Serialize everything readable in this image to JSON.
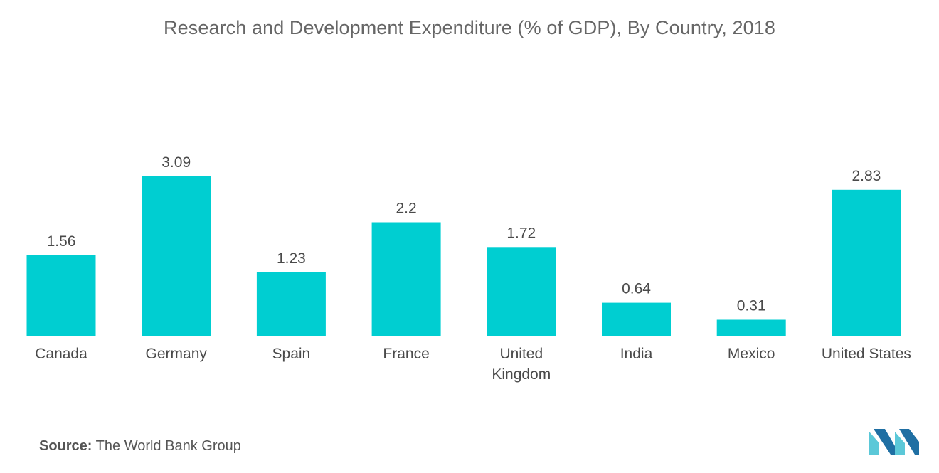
{
  "chart_data": {
    "type": "bar",
    "title": "Research and Development Expenditure (% of GDP), By Country, 2018",
    "categories": [
      [
        "Canada"
      ],
      [
        "Germany"
      ],
      [
        "Spain"
      ],
      [
        "France"
      ],
      [
        "United",
        "Kingdom"
      ],
      [
        "India"
      ],
      [
        "Mexico"
      ],
      [
        "United States"
      ]
    ],
    "values": [
      1.56,
      3.09,
      1.23,
      2.2,
      1.72,
      0.64,
      0.31,
      2.83
    ],
    "value_labels": [
      "1.56",
      "3.09",
      "1.23",
      "2.2",
      "1.72",
      "0.64",
      "0.31",
      "2.83"
    ],
    "xlabel": "",
    "ylabel": "",
    "ylim": [
      0,
      3.09
    ],
    "grid": false,
    "legend": "none",
    "bar_color": "#00CED1"
  },
  "footer": {
    "source_label": "Source:",
    "source_text": "The World Bank Group"
  },
  "logo": {
    "icon": "mordor-intelligence-logo-icon",
    "color_dark": "#1f6fa3",
    "color_light": "#5bc8d8"
  }
}
